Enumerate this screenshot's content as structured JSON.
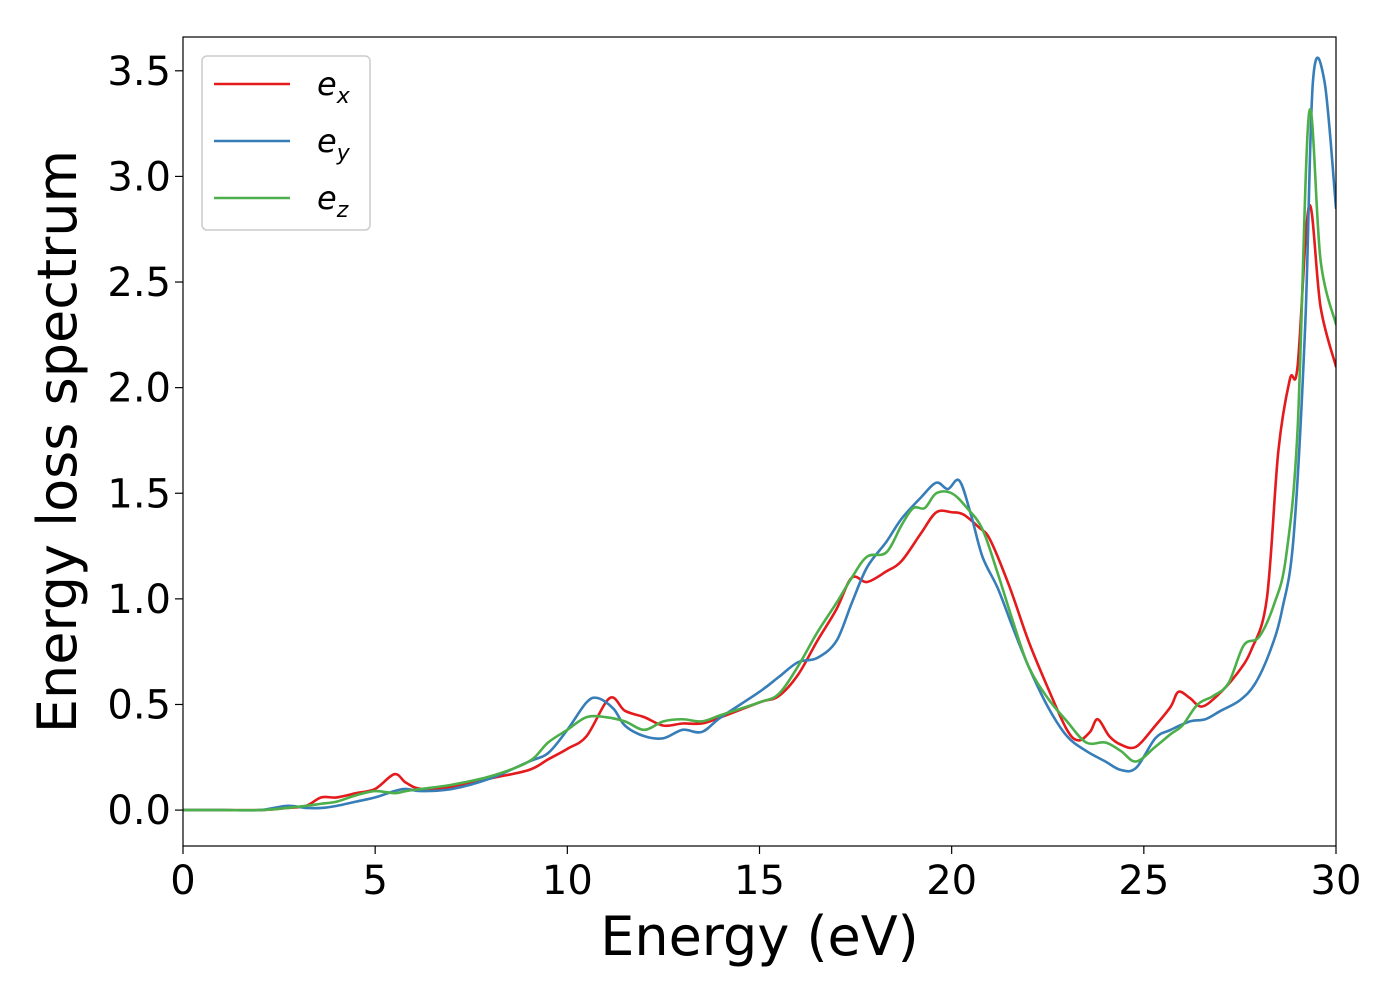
{
  "chart_data": {
    "type": "line",
    "xlabel": "Energy (eV)",
    "ylabel": "Energy loss spectrum",
    "xlim": [
      0,
      30
    ],
    "ylim": [
      -0.17,
      3.66
    ],
    "xticks": [
      0,
      5,
      10,
      15,
      20,
      25,
      30
    ],
    "xtick_labels": [
      "0",
      "5",
      "10",
      "15",
      "20",
      "25",
      "30"
    ],
    "yticks": [
      0.0,
      0.5,
      1.0,
      1.5,
      2.0,
      2.5,
      3.0,
      3.5
    ],
    "ytick_labels": [
      "0.0",
      "0.5",
      "1.0",
      "1.5",
      "2.0",
      "2.5",
      "3.0",
      "3.5"
    ],
    "grid": false,
    "legend_position": "top-left",
    "series": [
      {
        "name": "e",
        "subscript": "x",
        "color": "#e41a1c",
        "x": [
          0,
          1,
          2,
          2.7,
          3.2,
          3.6,
          4.0,
          4.5,
          5.0,
          5.5,
          5.8,
          6.2,
          7,
          8,
          9,
          9.5,
          10,
          10.5,
          11.1,
          11.5,
          12,
          12.5,
          13,
          13.5,
          14,
          15,
          15.5,
          16,
          16.5,
          17,
          17.4,
          17.8,
          18.3,
          18.7,
          19.2,
          19.6,
          20,
          20.3,
          20.7,
          21,
          21.5,
          22,
          22.5,
          23,
          23.3,
          23.6,
          23.8,
          24.1,
          24.4,
          24.8,
          25.3,
          25.7,
          25.9,
          26.2,
          26.5,
          26.9,
          27.4,
          27.8,
          28.2,
          28.5,
          28.8,
          29.0,
          29.3,
          29.6,
          30.0
        ],
        "y": [
          0.0,
          0.0,
          0.0,
          0.01,
          0.02,
          0.06,
          0.06,
          0.08,
          0.1,
          0.17,
          0.13,
          0.1,
          0.11,
          0.15,
          0.19,
          0.24,
          0.29,
          0.35,
          0.53,
          0.47,
          0.44,
          0.4,
          0.41,
          0.41,
          0.44,
          0.51,
          0.54,
          0.64,
          0.8,
          0.95,
          1.1,
          1.08,
          1.13,
          1.18,
          1.31,
          1.41,
          1.41,
          1.4,
          1.34,
          1.28,
          1.06,
          0.8,
          0.58,
          0.38,
          0.33,
          0.37,
          0.43,
          0.35,
          0.31,
          0.3,
          0.4,
          0.49,
          0.56,
          0.53,
          0.49,
          0.54,
          0.64,
          0.76,
          1.0,
          1.7,
          2.04,
          2.1,
          2.86,
          2.38,
          2.1
        ]
      },
      {
        "name": "e",
        "subscript": "y",
        "color": "#377eb8",
        "x": [
          0,
          1,
          2,
          2.7,
          3.2,
          3.6,
          4.0,
          4.5,
          5.0,
          5.5,
          5.8,
          6.2,
          7,
          8,
          9,
          9.5,
          10,
          10.5,
          10.8,
          11.2,
          11.5,
          12,
          12.5,
          13,
          13.5,
          14,
          15,
          15.5,
          16,
          16.5,
          17,
          17.4,
          17.8,
          18.3,
          18.7,
          19.2,
          19.6,
          19.9,
          20.2,
          20.5,
          20.8,
          21.2,
          21.6,
          22,
          22.5,
          23,
          23.5,
          24,
          24.4,
          24.8,
          25.3,
          25.7,
          26.2,
          26.6,
          27.0,
          27.5,
          27.9,
          28.3,
          28.6,
          28.9,
          29.2,
          29.4,
          29.7,
          30.0
        ],
        "y": [
          0.0,
          0.0,
          0.0,
          0.02,
          0.01,
          0.01,
          0.02,
          0.04,
          0.06,
          0.09,
          0.1,
          0.09,
          0.1,
          0.15,
          0.23,
          0.27,
          0.38,
          0.51,
          0.53,
          0.48,
          0.4,
          0.35,
          0.34,
          0.38,
          0.37,
          0.44,
          0.56,
          0.63,
          0.7,
          0.72,
          0.8,
          0.98,
          1.15,
          1.27,
          1.38,
          1.48,
          1.55,
          1.52,
          1.56,
          1.4,
          1.2,
          1.05,
          0.86,
          0.68,
          0.49,
          0.35,
          0.28,
          0.23,
          0.19,
          0.2,
          0.34,
          0.38,
          0.42,
          0.43,
          0.47,
          0.52,
          0.6,
          0.76,
          0.95,
          1.3,
          2.3,
          3.45,
          3.45,
          2.85
        ]
      },
      {
        "name": "e",
        "subscript": "z",
        "color": "#4daf4a",
        "x": [
          0,
          1,
          2,
          2.7,
          3.2,
          3.6,
          4.0,
          4.5,
          5.0,
          5.5,
          5.8,
          6.2,
          7,
          8,
          9,
          9.5,
          10,
          10.5,
          11.0,
          11.5,
          12,
          12.5,
          13,
          13.5,
          14,
          15,
          15.5,
          16,
          16.5,
          17,
          17.4,
          17.8,
          18.3,
          18.7,
          19.0,
          19.3,
          19.6,
          20,
          20.4,
          20.8,
          21.2,
          21.6,
          22,
          22.5,
          23,
          23.5,
          24,
          24.4,
          24.8,
          25.3,
          25.7,
          26.0,
          26.4,
          26.8,
          27.2,
          27.6,
          28.0,
          28.4,
          28.7,
          29.0,
          29.3,
          29.6,
          30.0
        ],
        "y": [
          0.0,
          0.0,
          0.0,
          0.01,
          0.02,
          0.03,
          0.04,
          0.07,
          0.09,
          0.08,
          0.09,
          0.1,
          0.12,
          0.16,
          0.23,
          0.32,
          0.38,
          0.44,
          0.44,
          0.42,
          0.38,
          0.42,
          0.43,
          0.42,
          0.45,
          0.51,
          0.55,
          0.68,
          0.84,
          0.98,
          1.1,
          1.2,
          1.22,
          1.35,
          1.43,
          1.43,
          1.5,
          1.5,
          1.43,
          1.33,
          1.12,
          0.89,
          0.68,
          0.53,
          0.42,
          0.32,
          0.32,
          0.28,
          0.23,
          0.3,
          0.36,
          0.4,
          0.5,
          0.54,
          0.6,
          0.78,
          0.82,
          0.98,
          1.2,
          1.8,
          3.3,
          2.6,
          2.3
        ]
      }
    ]
  }
}
